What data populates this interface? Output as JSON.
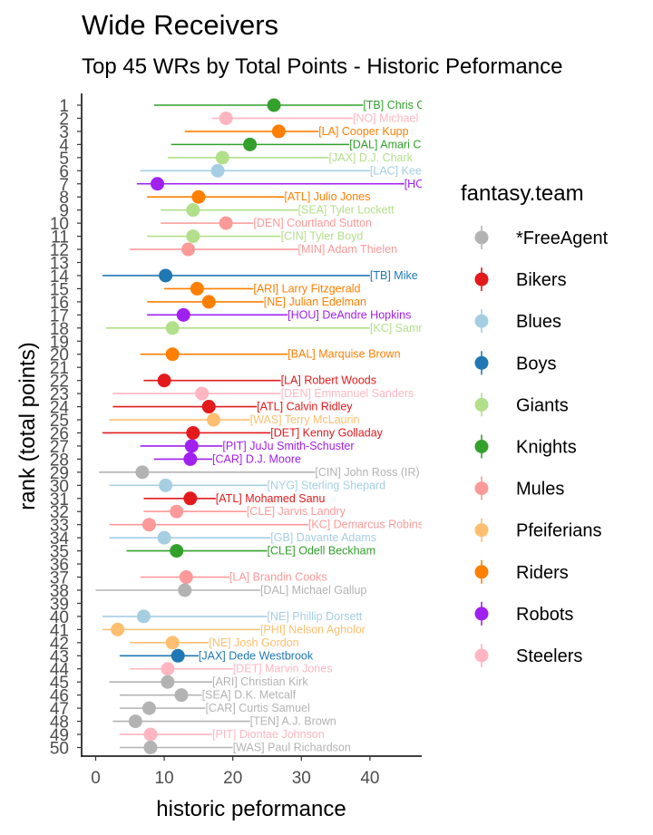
{
  "chart_data": {
    "type": "scatter",
    "title": "Wide Receivers",
    "subtitle": "Top 45 WRs by Total Points - Historic Peformance",
    "xlabel": "historic peformance",
    "ylabel": "rank (total points)",
    "xlim": [
      -2,
      47
    ],
    "xticks": [
      0,
      10,
      20,
      30,
      40
    ],
    "legend_title": "fantasy.team",
    "legend_position": "right",
    "teams": [
      {
        "name": "*FreeAgent",
        "color": "#b3b3b3"
      },
      {
        "name": "Bikers",
        "color": "#e31a1c"
      },
      {
        "name": "Blues",
        "color": "#a6cee3"
      },
      {
        "name": "Boys",
        "color": "#1f78b4"
      },
      {
        "name": "Giants",
        "color": "#b2df8a"
      },
      {
        "name": "Knights",
        "color": "#33a02c"
      },
      {
        "name": "Mules",
        "color": "#fb9a99"
      },
      {
        "name": "Pfeiferians",
        "color": "#fdbf6f"
      },
      {
        "name": "Riders",
        "color": "#ff7f00"
      },
      {
        "name": "Robots",
        "color": "#a020f0"
      },
      {
        "name": "Steelers",
        "color": "#ffb6c1"
      }
    ],
    "players": [
      {
        "rank": "1",
        "label": "[TB] Chris Godwin",
        "team": "Knights",
        "low": 8.5,
        "mid": 26.0,
        "high": 39.0
      },
      {
        "rank": "2",
        "label": "[NO] Michael Thomas",
        "team": "Steelers",
        "low": 17.0,
        "mid": 19.0,
        "high": 37.5
      },
      {
        "rank": "3",
        "label": "[LA] Cooper Kupp",
        "team": "Riders",
        "low": 13.0,
        "mid": 26.7,
        "high": 32.5
      },
      {
        "rank": "4",
        "label": "[DAL] Amari Cooper",
        "team": "Knights",
        "low": 11.0,
        "mid": 22.5,
        "high": 37.0
      },
      {
        "rank": "5",
        "label": "[JAX] D.J. Chark",
        "team": "Giants",
        "low": 10.5,
        "mid": 18.5,
        "high": 34.0
      },
      {
        "rank": "6",
        "label": "[LAC] Keenan Allen",
        "team": "Blues",
        "low": 6.5,
        "mid": 17.8,
        "high": 40.0
      },
      {
        "rank": "7",
        "label": "[HOU] Will Fuller",
        "team": "Robots",
        "low": 6.0,
        "mid": 9.0,
        "high": 45.0
      },
      {
        "rank": "8",
        "label": "[ATL] Julio Jones",
        "team": "Riders",
        "low": 7.5,
        "mid": 15.0,
        "high": 27.5
      },
      {
        "rank": "9",
        "label": "[SEA] Tyler Lockett",
        "team": "Giants",
        "low": 9.5,
        "mid": 14.2,
        "high": 29.5
      },
      {
        "rank": "10",
        "label": "[DEN] Courtland Sutton",
        "team": "Mules",
        "low": 9.5,
        "mid": 19.0,
        "high": 23.0
      },
      {
        "rank": "11",
        "label": "[CIN] Tyler Boyd",
        "team": "Giants",
        "low": 7.5,
        "mid": 14.2,
        "high": 27.0
      },
      {
        "rank": "12",
        "label": "[MIN] Adam Thielen",
        "team": "Mules",
        "low": 5.0,
        "mid": 13.5,
        "high": 29.5
      },
      {
        "rank": "14",
        "label": "[TB] Mike Evans",
        "team": "Boys",
        "low": 1.0,
        "mid": 10.2,
        "high": 40.0
      },
      {
        "rank": "15",
        "label": "[ARI] Larry Fitzgerald",
        "team": "Riders",
        "low": 10.0,
        "mid": 14.8,
        "high": 23.0
      },
      {
        "rank": "16",
        "label": "[NE] Julian Edelman",
        "team": "Riders",
        "low": 7.5,
        "mid": 16.5,
        "high": 24.5
      },
      {
        "rank": "17",
        "label": "[HOU] DeAndre Hopkins",
        "team": "Robots",
        "low": 7.5,
        "mid": 12.8,
        "high": 28.0
      },
      {
        "rank": "18",
        "label": "[KC] Sammy Watkins",
        "team": "Giants",
        "low": 1.5,
        "mid": 11.2,
        "high": 40.0
      },
      {
        "rank": "20",
        "label": "[BAL] Marquise Brown",
        "team": "Riders",
        "low": 6.5,
        "mid": 11.2,
        "high": 28.0
      },
      {
        "rank": "22",
        "label": "[LA] Robert Woods",
        "team": "Bikers",
        "low": 7.0,
        "mid": 10.0,
        "high": 27.0
      },
      {
        "rank": "23",
        "label": "[DEN] Emmanuel Sanders",
        "team": "Steelers",
        "low": 2.5,
        "mid": 15.5,
        "high": 27.0
      },
      {
        "rank": "24",
        "label": "[ATL] Calvin Ridley",
        "team": "Bikers",
        "low": 2.5,
        "mid": 16.5,
        "high": 23.5
      },
      {
        "rank": "25",
        "label": "[WAS] Terry McLaurin",
        "team": "Pfeiferians",
        "low": 2.0,
        "mid": 17.2,
        "high": 22.5
      },
      {
        "rank": "26",
        "label": "[DET] Kenny Golladay",
        "team": "Bikers",
        "low": 1.0,
        "mid": 14.2,
        "high": 25.5
      },
      {
        "rank": "27",
        "label": "[PIT] JuJu Smith-Schuster",
        "team": "Robots",
        "low": 6.5,
        "mid": 14.0,
        "high": 18.5
      },
      {
        "rank": "28",
        "label": "[CAR] D.J. Moore",
        "team": "Robots",
        "low": 8.5,
        "mid": 13.8,
        "high": 17.0
      },
      {
        "rank": "29",
        "label": "[CIN] John Ross (IR)",
        "team": "*FreeAgent",
        "low": 0.5,
        "mid": 6.8,
        "high": 32.0
      },
      {
        "rank": "30",
        "label": "[NYG] Sterling Shepard",
        "team": "Blues",
        "low": 2.0,
        "mid": 10.2,
        "high": 25.0
      },
      {
        "rank": "31",
        "label": "[ATL] Mohamed Sanu",
        "team": "Bikers",
        "low": 7.0,
        "mid": 13.8,
        "high": 17.5
      },
      {
        "rank": "32",
        "label": "[CLE] Jarvis Landry",
        "team": "Mules",
        "low": 7.0,
        "mid": 11.8,
        "high": 22.0
      },
      {
        "rank": "33",
        "label": "[KC] Demarcus Robinson",
        "team": "Mules",
        "low": 2.0,
        "mid": 7.8,
        "high": 31.0
      },
      {
        "rank": "34",
        "label": "[GB] Davante Adams",
        "team": "Blues",
        "low": 2.0,
        "mid": 10.0,
        "high": 25.5
      },
      {
        "rank": "35",
        "label": "[CLE] Odell Beckham",
        "team": "Knights",
        "low": 4.5,
        "mid": 11.8,
        "high": 25.0
      },
      {
        "rank": "37",
        "label": "[LA] Brandin Cooks",
        "team": "Mules",
        "low": 6.5,
        "mid": 13.2,
        "high": 19.5
      },
      {
        "rank": "38",
        "label": "[DAL] Michael Gallup",
        "team": "*FreeAgent",
        "low": 0.0,
        "mid": 13.0,
        "high": 24.0
      },
      {
        "rank": "40",
        "label": "[NE] Phillip Dorsett",
        "team": "Blues",
        "low": 1.0,
        "mid": 7.0,
        "high": 25.0
      },
      {
        "rank": "41",
        "label": "[PHI] Nelson Agholor",
        "team": "Pfeiferians",
        "low": 1.0,
        "mid": 3.2,
        "high": 24.0
      },
      {
        "rank": "42",
        "label": "[NE] Josh Gordon",
        "team": "Pfeiferians",
        "low": 5.0,
        "mid": 11.2,
        "high": 16.5
      },
      {
        "rank": "43",
        "label": "[JAX] Dede Westbrook",
        "team": "Boys",
        "low": 3.5,
        "mid": 12.0,
        "high": 15.0
      },
      {
        "rank": "44",
        "label": "[DET] Marvin Jones",
        "team": "Steelers",
        "low": 5.0,
        "mid": 10.5,
        "high": 20.0
      },
      {
        "rank": "45",
        "label": "[ARI] Christian Kirk",
        "team": "*FreeAgent",
        "low": 2.0,
        "mid": 10.5,
        "high": 17.0
      },
      {
        "rank": "46",
        "label": "[SEA] D.K. Metcalf",
        "team": "*FreeAgent",
        "low": 3.5,
        "mid": 12.5,
        "high": 15.5
      },
      {
        "rank": "47",
        "label": "[CAR] Curtis Samuel",
        "team": "*FreeAgent",
        "low": 3.5,
        "mid": 7.8,
        "high": 16.0
      },
      {
        "rank": "48",
        "label": "[TEN] A.J. Brown",
        "team": "*FreeAgent",
        "low": 2.5,
        "mid": 5.8,
        "high": 22.5
      },
      {
        "rank": "49",
        "label": "[PIT] Diontae Johnson",
        "team": "Steelers",
        "low": 3.5,
        "mid": 8.0,
        "high": 17.0
      },
      {
        "rank": "50",
        "label": "[WAS] Paul Richardson",
        "team": "*FreeAgent",
        "low": 3.5,
        "mid": 8.0,
        "high": 20.0
      }
    ]
  }
}
